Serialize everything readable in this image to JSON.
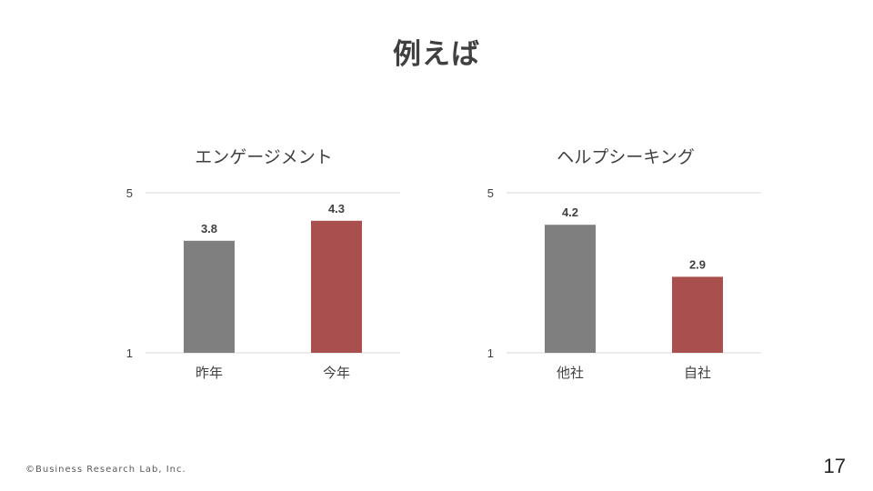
{
  "slide": {
    "title": "例えば",
    "page_number": "17",
    "copyright": "©Business Research Lab, Inc."
  },
  "colors": {
    "gray_bar": "#7f7f7f",
    "red_bar": "#a94f4e",
    "gridline": "#d9d9d9",
    "text": "#404040"
  },
  "chart_data": [
    {
      "type": "bar",
      "title": "エンゲージメント",
      "categories": [
        "昨年",
        "今年"
      ],
      "values": [
        3.8,
        4.3
      ],
      "value_labels": [
        "3.8",
        "4.3"
      ],
      "bar_colors": [
        "#7f7f7f",
        "#a94f4e"
      ],
      "ylim": [
        1,
        5
      ],
      "yticks": [
        "1",
        "5"
      ],
      "grid": true,
      "xlabel": "",
      "ylabel": ""
    },
    {
      "type": "bar",
      "title": "ヘルプシーキング",
      "categories": [
        "他社",
        "自社"
      ],
      "values": [
        4.2,
        2.9
      ],
      "value_labels": [
        "4.2",
        "2.9"
      ],
      "bar_colors": [
        "#7f7f7f",
        "#a94f4e"
      ],
      "ylim": [
        1,
        5
      ],
      "yticks": [
        "1",
        "5"
      ],
      "grid": true,
      "xlabel": "",
      "ylabel": ""
    }
  ]
}
